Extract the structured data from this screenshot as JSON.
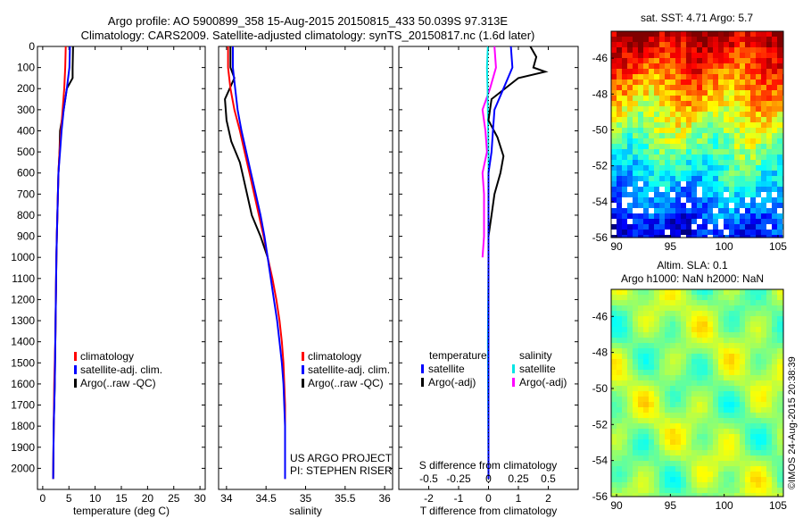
{
  "header": {
    "line1": "Argo profile: AO 5900899_358 15-Aug-2015 20150815_433 50.039S 97.313E",
    "line2": "Climatology: CARS2009. Satellite-adjusted climatology: synTS_20150817.nc (1.6d later)"
  },
  "colors": {
    "climatology": "#ff0000",
    "satellite": "#0000ff",
    "argo": "#000000",
    "sal_satellite": "#00e5e5",
    "sal_argo": "#ff00ff"
  },
  "chart_data": [
    {
      "id": "temperature",
      "type": "line",
      "xlabel": "temperature (deg C)",
      "ylabel": "",
      "xlim": [
        -1,
        31
      ],
      "ylim": [
        2100,
        0
      ],
      "xticks": [
        "0",
        "5",
        "10",
        "15",
        "20",
        "25",
        "30"
      ],
      "xtick_values": [
        0,
        5,
        10,
        15,
        20,
        25,
        30
      ],
      "yticks": [
        "0",
        "100",
        "200",
        "300",
        "400",
        "500",
        "600",
        "700",
        "800",
        "900",
        "1000",
        "1100",
        "1200",
        "1300",
        "1400",
        "1500",
        "1600",
        "1700",
        "1800",
        "1900",
        "2000"
      ],
      "ytick_values": [
        0,
        100,
        200,
        300,
        400,
        500,
        600,
        700,
        800,
        900,
        1000,
        1100,
        1200,
        1300,
        1400,
        1500,
        1600,
        1700,
        1800,
        1900,
        2000
      ],
      "legend": [
        "climatology",
        "satellite-adj. clim.",
        "Argo(..raw -QC)"
      ],
      "series": [
        {
          "name": "climatology",
          "color": "#ff0000",
          "points": [
            [
              4.4,
              0
            ],
            [
              4.3,
              100
            ],
            [
              4.1,
              200
            ],
            [
              3.8,
              300
            ],
            [
              3.5,
              400
            ],
            [
              3.2,
              500
            ],
            [
              3.0,
              600
            ],
            [
              2.9,
              700
            ],
            [
              2.8,
              800
            ],
            [
              2.7,
              900
            ],
            [
              2.6,
              1000
            ],
            [
              2.5,
              1200
            ],
            [
              2.4,
              1400
            ],
            [
              2.2,
              1600
            ],
            [
              2.1,
              1800
            ],
            [
              2.0,
              2050
            ]
          ]
        },
        {
          "name": "satellite-adj. clim.",
          "color": "#0000ff",
          "points": [
            [
              5.2,
              0
            ],
            [
              5.1,
              100
            ],
            [
              4.6,
              200
            ],
            [
              4.0,
              300
            ],
            [
              3.6,
              400
            ],
            [
              3.3,
              500
            ],
            [
              3.0,
              600
            ],
            [
              2.9,
              700
            ],
            [
              2.8,
              800
            ],
            [
              2.7,
              900
            ],
            [
              2.6,
              1000
            ],
            [
              2.5,
              1200
            ],
            [
              2.4,
              1400
            ],
            [
              2.3,
              1600
            ],
            [
              2.1,
              1800
            ],
            [
              2.0,
              2050
            ]
          ]
        },
        {
          "name": "Argo(..raw -QC)",
          "color": "#000000",
          "points": [
            [
              5.8,
              0
            ],
            [
              5.7,
              100
            ],
            [
              5.7,
              150
            ],
            [
              4.6,
              200
            ],
            [
              4.0,
              300
            ],
            [
              3.3,
              400
            ],
            [
              3.2,
              500
            ],
            [
              3.0,
              600
            ],
            [
              2.9,
              700
            ],
            [
              2.8,
              800
            ],
            [
              2.7,
              900
            ],
            [
              2.6,
              1000
            ],
            [
              2.5,
              1200
            ],
            [
              2.4,
              1400
            ],
            [
              2.3,
              1600
            ],
            [
              2.1,
              1800
            ],
            [
              2.0,
              2050
            ]
          ]
        }
      ]
    },
    {
      "id": "salinity",
      "type": "line",
      "xlabel": "salinity",
      "xlim": [
        33.9,
        36.1
      ],
      "ylim": [
        2100,
        0
      ],
      "xticks": [
        "34",
        "34.5",
        "35",
        "35.5",
        "36"
      ],
      "xtick_values": [
        34,
        34.5,
        35,
        35.5,
        36
      ],
      "legend": [
        "climatology",
        "satellite-adj. clim.",
        "Argo(..raw -QC)"
      ],
      "annotations": [
        "US ARGO PROJECT",
        "PI: STEPHEN RISER"
      ],
      "series": [
        {
          "name": "climatology",
          "color": "#ff0000",
          "points": [
            [
              34.02,
              0
            ],
            [
              34.02,
              100
            ],
            [
              34.05,
              200
            ],
            [
              34.1,
              300
            ],
            [
              34.17,
              400
            ],
            [
              34.23,
              500
            ],
            [
              34.29,
              600
            ],
            [
              34.35,
              700
            ],
            [
              34.41,
              800
            ],
            [
              34.47,
              900
            ],
            [
              34.52,
              1000
            ],
            [
              34.58,
              1100
            ],
            [
              34.63,
              1200
            ],
            [
              34.67,
              1300
            ],
            [
              34.7,
              1400
            ],
            [
              34.72,
              1500
            ],
            [
              34.73,
              1600
            ],
            [
              34.74,
              1700
            ],
            [
              34.74,
              2050
            ]
          ]
        },
        {
          "name": "satellite-adj. clim.",
          "color": "#0000ff",
          "points": [
            [
              34.08,
              0
            ],
            [
              34.08,
              100
            ],
            [
              34.11,
              200
            ],
            [
              34.14,
              300
            ],
            [
              34.19,
              400
            ],
            [
              34.25,
              500
            ],
            [
              34.31,
              600
            ],
            [
              34.37,
              700
            ],
            [
              34.43,
              800
            ],
            [
              34.48,
              900
            ],
            [
              34.52,
              1000
            ],
            [
              34.56,
              1100
            ],
            [
              34.6,
              1200
            ],
            [
              34.64,
              1300
            ],
            [
              34.67,
              1400
            ],
            [
              34.7,
              1500
            ],
            [
              34.72,
              1600
            ],
            [
              34.73,
              1700
            ],
            [
              34.74,
              1800
            ],
            [
              34.74,
              2050
            ]
          ]
        },
        {
          "name": "Argo(..raw -QC)",
          "color": "#000000",
          "points": [
            [
              34.05,
              0
            ],
            [
              34.05,
              100
            ],
            [
              34.1,
              150
            ],
            [
              33.98,
              250
            ],
            [
              34.0,
              350
            ],
            [
              34.06,
              450
            ],
            [
              34.17,
              550
            ],
            [
              34.2,
              600
            ],
            [
              34.32,
              800
            ],
            [
              34.43,
              900
            ],
            [
              34.52,
              1000
            ]
          ]
        }
      ]
    },
    {
      "id": "difference",
      "type": "line",
      "xlabel": "T difference from climatology",
      "x2label": "S difference from climatology",
      "xlim": [
        -3,
        3
      ],
      "ylim": [
        2100,
        0
      ],
      "xticks": [
        "-2",
        "-1",
        "0",
        "1",
        "2"
      ],
      "xtick_values": [
        -2,
        -1,
        0,
        1,
        2
      ],
      "x2ticks": [
        "-0.5",
        "-0.25",
        "0",
        "0.25",
        "0.5"
      ],
      "x2tick_values": [
        -0.5,
        -0.25,
        0,
        0.25,
        0.5
      ],
      "legend_headers": [
        "temperature",
        "salinity"
      ],
      "legend": [
        "satellite",
        "Argo(-adj)",
        "satellite",
        "Argo(-adj)"
      ],
      "series": [
        {
          "name": "satellite",
          "group": "temperature",
          "color": "#0000ff",
          "points": [
            [
              0.75,
              0
            ],
            [
              0.8,
              100
            ],
            [
              0.5,
              200
            ],
            [
              0.2,
              300
            ],
            [
              0.15,
              400
            ],
            [
              0.1,
              500
            ],
            [
              0.0,
              600
            ],
            [
              0.0,
              800
            ],
            [
              0.0,
              1000
            ],
            [
              0.0,
              1600
            ],
            [
              0.0,
              2050
            ]
          ]
        },
        {
          "name": "Argo(-adj)",
          "group": "temperature",
          "color": "#000000",
          "points": [
            [
              1.4,
              0
            ],
            [
              1.6,
              50
            ],
            [
              1.5,
              100
            ],
            [
              1.9,
              120
            ],
            [
              1.0,
              150
            ],
            [
              0.1,
              250
            ],
            [
              0.0,
              350
            ],
            [
              0.3,
              430
            ],
            [
              0.5,
              520
            ],
            [
              0.4,
              600
            ],
            [
              0.2,
              700
            ],
            [
              0.1,
              800
            ],
            [
              0.0,
              900
            ],
            [
              0.0,
              1000
            ]
          ]
        },
        {
          "name": "satellite",
          "group": "salinity",
          "color": "#00e5e5",
          "points": [
            [
              -0.02,
              0
            ],
            [
              -0.05,
              100
            ],
            [
              -0.03,
              200
            ],
            [
              -0.02,
              300
            ],
            [
              0.0,
              500
            ],
            [
              0.0,
              1000
            ],
            [
              -0.02,
              1400
            ],
            [
              0.0,
              2050
            ]
          ]
        },
        {
          "name": "Argo(-adj)",
          "group": "salinity",
          "color": "#ff00ff",
          "points": [
            [
              0.2,
              0
            ],
            [
              0.25,
              100
            ],
            [
              0.05,
              200
            ],
            [
              -0.2,
              300
            ],
            [
              -0.1,
              400
            ],
            [
              -0.05,
              500
            ],
            [
              -0.2,
              600
            ],
            [
              -0.15,
              700
            ],
            [
              -0.15,
              900
            ],
            [
              -0.2,
              1000
            ]
          ]
        }
      ]
    },
    {
      "id": "sst_map",
      "type": "heatmap",
      "title": "sat. SST: 4.71  Argo: 5.7",
      "xticks": [
        "90",
        "95",
        "100",
        "105"
      ],
      "xtick_values": [
        90,
        95,
        100,
        105
      ],
      "yticks": [
        "-46",
        "-48",
        "-50",
        "-52",
        "-54",
        "-56"
      ],
      "ytick_values": [
        -46,
        -48,
        -50,
        -52,
        -54,
        -56
      ],
      "xlim": [
        89.5,
        105.5
      ],
      "ylim": [
        -56,
        -44.5
      ]
    },
    {
      "id": "sla_map",
      "type": "heatmap",
      "title_lines": [
        "Altim. SLA: 0.1",
        "Argo h1000: NaN  h2000: NaN"
      ],
      "xticks": [
        "90",
        "95",
        "100",
        "105"
      ],
      "xtick_values": [
        90,
        95,
        100,
        105
      ],
      "yticks": [
        "-46",
        "-48",
        "-50",
        "-52",
        "-54",
        "-56"
      ],
      "ytick_values": [
        -46,
        -48,
        -50,
        -52,
        -54,
        -56
      ],
      "xlim": [
        89.5,
        105.5
      ],
      "ylim": [
        -56,
        -44.5
      ]
    }
  ],
  "footer": {
    "stamp": "©IMOS 24-Aug-2015 20:38:39"
  }
}
